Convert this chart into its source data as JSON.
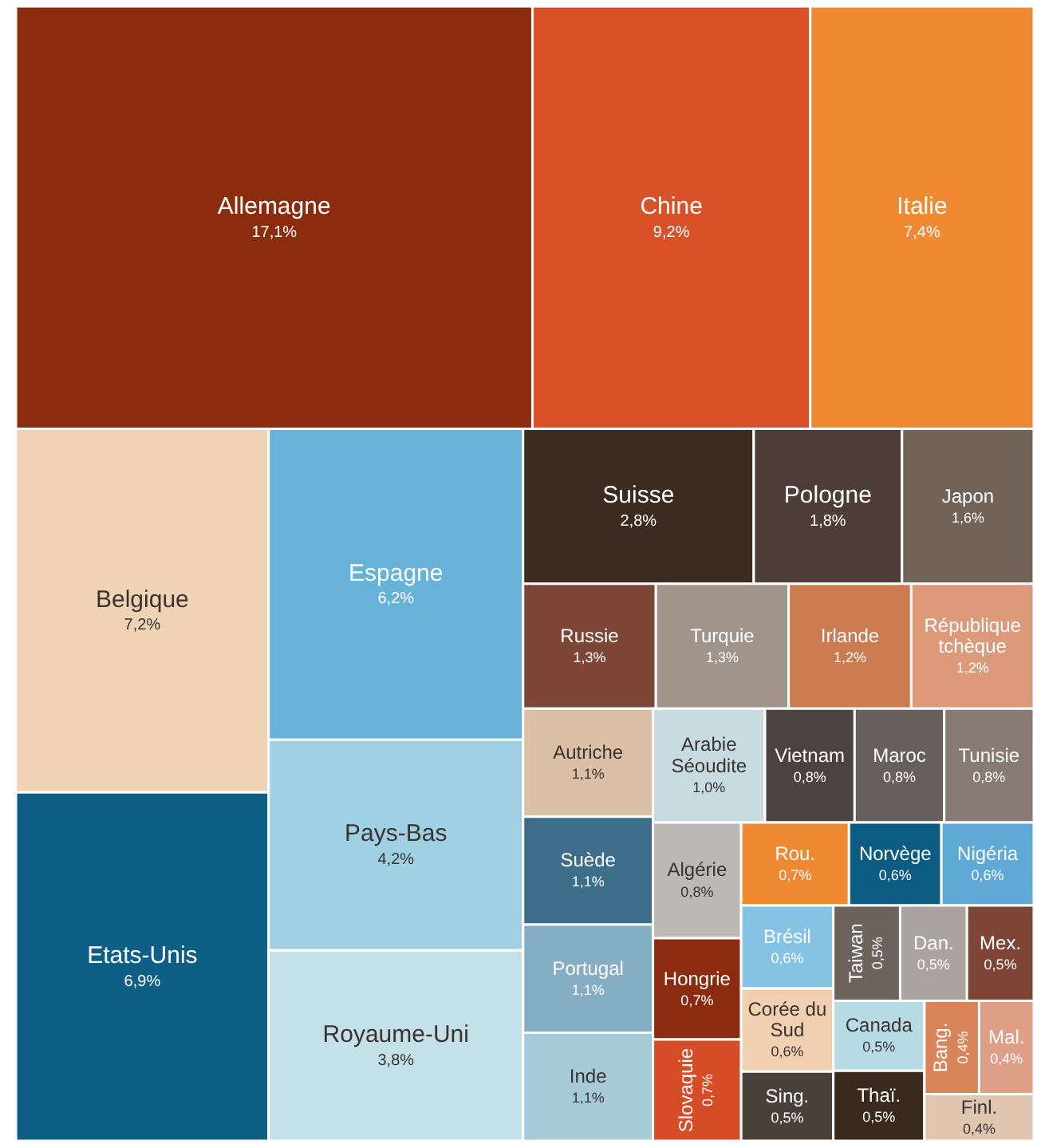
{
  "chart_data": {
    "type": "other",
    "categories": [
      "Allemagne",
      "Chine",
      "Italie",
      "Belgique",
      "Etats-Unis",
      "Espagne",
      "Pays-Bas",
      "Royaume-Uni",
      "Suisse",
      "Pologne",
      "Japon",
      "Russie",
      "Turquie",
      "Irlande",
      "République tchèque",
      "Autriche",
      "Suède",
      "Portugal",
      "Inde",
      "Arabie Séoudite",
      "Vietnam",
      "Maroc",
      "Tunisie",
      "Algérie",
      "Hongrie",
      "Slovaquie",
      "Rou.",
      "Norvège",
      "Nigéria",
      "Brésil",
      "Corée du Sud",
      "Sing.",
      "Taiwan",
      "Dan.",
      "Mex.",
      "Canada",
      "Thaï.",
      "Bang.",
      "Mal.",
      "Finl."
    ],
    "values": [
      17.1,
      9.2,
      7.4,
      7.2,
      6.9,
      6.2,
      4.2,
      3.8,
      2.8,
      1.8,
      1.6,
      1.3,
      1.3,
      1.2,
      1.2,
      1.1,
      1.1,
      1.1,
      1.1,
      1.0,
      0.8,
      0.8,
      0.8,
      0.8,
      0.7,
      0.7,
      0.7,
      0.6,
      0.6,
      0.6,
      0.6,
      0.5,
      0.5,
      0.5,
      0.5,
      0.5,
      0.5,
      0.4,
      0.4,
      0.4
    ],
    "value_labels": [
      "17,1%",
      "9,2%",
      "7,4%",
      "7,2%",
      "6,9%",
      "6,2%",
      "4,2%",
      "3,8%",
      "2,8%",
      "1,8%",
      "1,6%",
      "1,3%",
      "1,3%",
      "1,2%",
      "1,2%",
      "1,1%",
      "1,1%",
      "1,1%",
      "1,1%",
      "1,0%",
      "0,8%",
      "0,8%",
      "0,8%",
      "0,8%",
      "0,7%",
      "0,7%",
      "0,7%",
      "0,6%",
      "0,6%",
      "0,6%",
      "0,6%",
      "0,5%",
      "0,5%",
      "0,5%",
      "0,5%",
      "0,5%",
      "0,5%",
      "0,4%",
      "0,4%",
      "0,4%"
    ],
    "colors": [
      "#8b2c0f",
      "#d95128",
      "#ef8a33",
      "#f0d2b4",
      "#0e5f86",
      "#67b2d9",
      "#9fd0e3",
      "#c4e0e8",
      "#3b2b20",
      "#4e3d36",
      "#726359",
      "#7d4536",
      "#a09389",
      "#cc7a4f",
      "#dd9a7a",
      "#dbbfa6",
      "#3c6e89",
      "#85aec5",
      "#a6cad8",
      "#c7dbe0",
      "#4b4340",
      "#66605c",
      "#877b73",
      "#bcb8b4",
      "#8b2c10",
      "#d54c26",
      "#ef8a33",
      "#0b5b83",
      "#5ea9d6",
      "#84c3e3",
      "#f0d0b0",
      "#4b3f3a",
      "#6e625c",
      "#aaa49f",
      "#7e4536",
      "#b8dce6",
      "#3a2a1e",
      "#d9845a",
      "#df9f86",
      "#e0c6b0"
    ]
  }
}
